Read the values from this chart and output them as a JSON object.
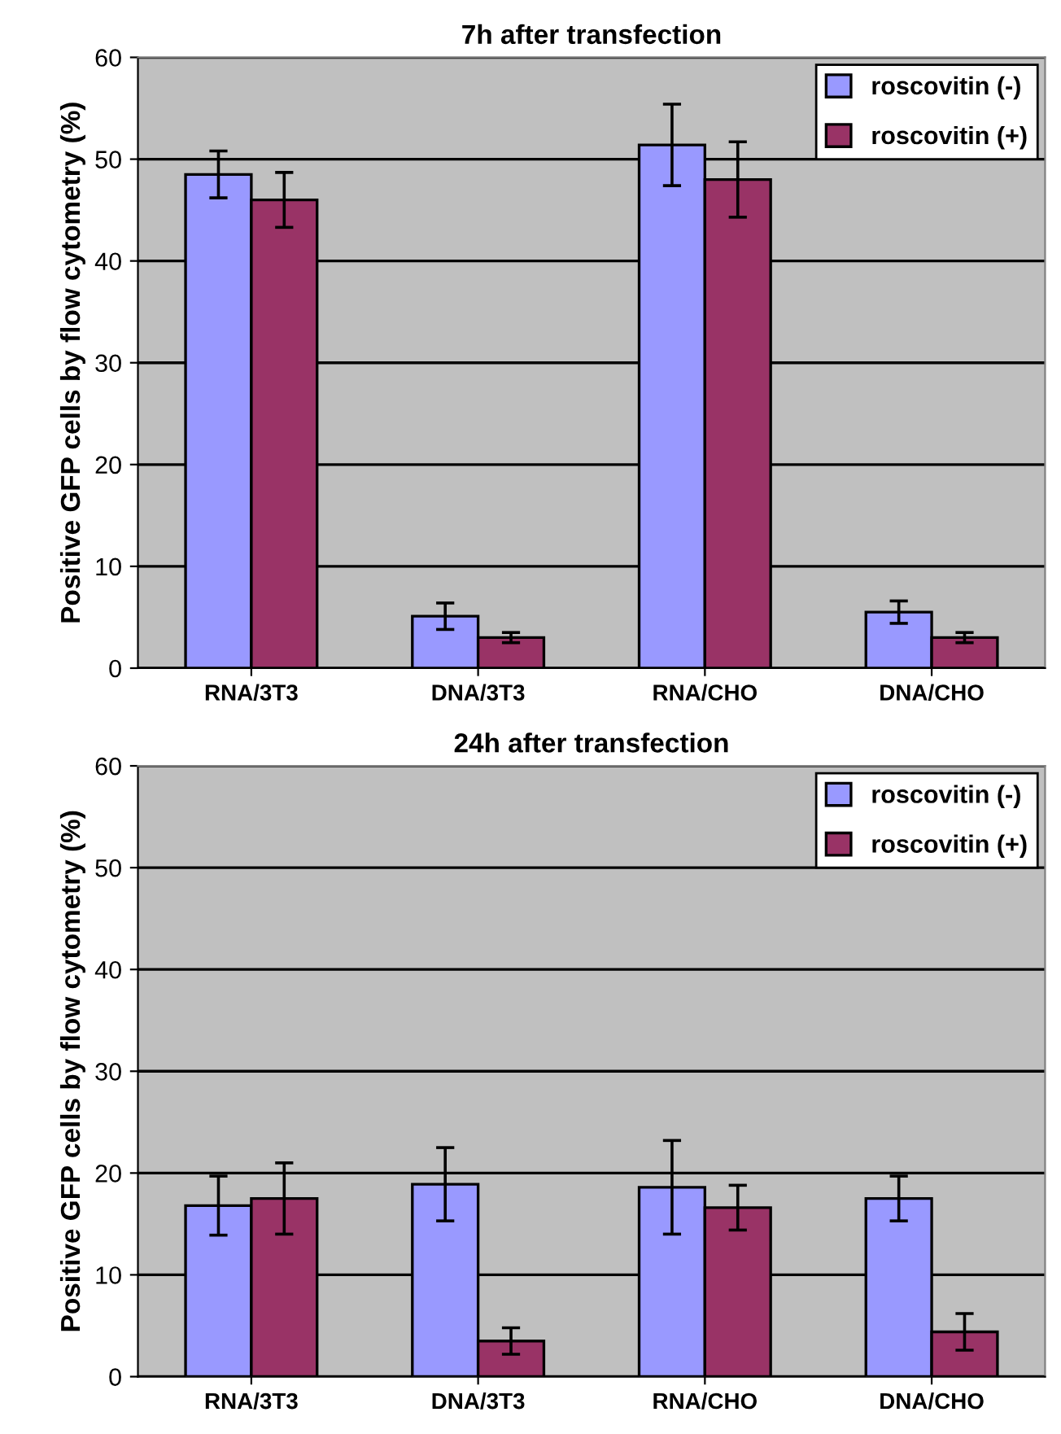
{
  "chart_data": [
    {
      "type": "bar",
      "title": "7h after transfection",
      "ylabel": "Positive GFP cells by flow cytometry (%)",
      "categories": [
        "RNA/3T3",
        "DNA/3T3",
        "RNA/CHO",
        "DNA/CHO"
      ],
      "series": [
        {
          "name": "roscovitin (-)",
          "color": "#9999ff",
          "values": [
            48.5,
            5.1,
            51.4,
            5.5
          ],
          "errors": [
            2.3,
            1.3,
            4.0,
            1.1
          ]
        },
        {
          "name": "roscovitin (+)",
          "color": "#993366",
          "values": [
            46.0,
            3.0,
            48.0,
            3.0
          ],
          "errors": [
            2.7,
            0.5,
            3.7,
            0.5
          ]
        }
      ],
      "ylim": [
        0,
        60
      ],
      "yticks": [
        0,
        10,
        20,
        30,
        40,
        50,
        60
      ],
      "grid": "y",
      "legend": "top right"
    },
    {
      "type": "bar",
      "title": "24h after transfection",
      "ylabel": "Positive GFP cells by flow cytometry (%)",
      "categories": [
        "RNA/3T3",
        "DNA/3T3",
        "RNA/CHO",
        "DNA/CHO"
      ],
      "series": [
        {
          "name": "roscovitin (-)",
          "color": "#9999ff",
          "values": [
            16.8,
            18.9,
            18.6,
            17.5
          ],
          "errors": [
            2.9,
            3.6,
            4.6,
            2.2
          ]
        },
        {
          "name": "roscovitin (+)",
          "color": "#993366",
          "values": [
            17.5,
            3.5,
            16.6,
            4.4
          ],
          "errors": [
            3.5,
            1.3,
            2.2,
            1.8
          ]
        }
      ],
      "ylim": [
        0,
        60
      ],
      "yticks": [
        0,
        10,
        20,
        30,
        40,
        50,
        60
      ],
      "grid": "y",
      "legend": "top right"
    }
  ]
}
